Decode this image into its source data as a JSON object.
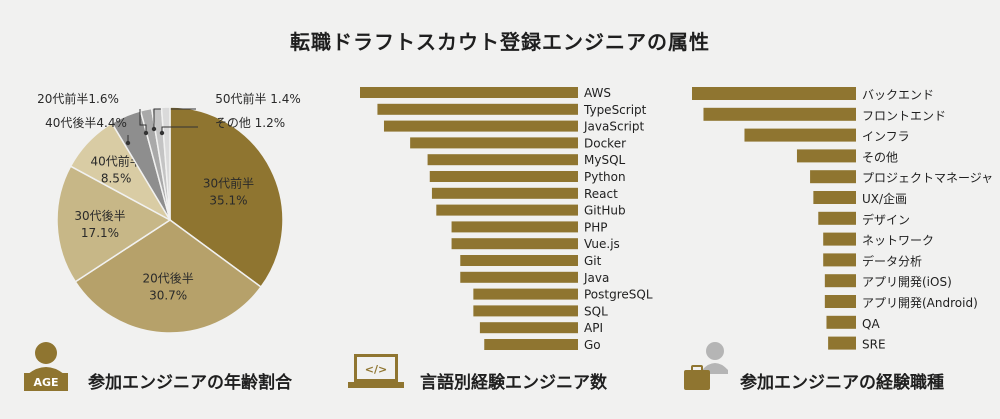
{
  "title": "転職ドラフトスカウト登録エンジニアの属性",
  "colors": {
    "gold": "#8f7530",
    "gold_light": "#b6a16a",
    "sand": "#d3c49a",
    "gray_dark": "#8e8e8e",
    "gray_mid": "#a9a9a9",
    "gray_light": "#c4c4c4",
    "gray_pale": "#dadada",
    "icon": "#8f7530",
    "icon_gray": "#b5b5b5"
  },
  "age_section": {
    "label": "参加エンジニアの年齢割合",
    "icon_text": "AGE"
  },
  "language_section": {
    "label": "言語別経験エンジニア数",
    "icon_text": "</>"
  },
  "job_section": {
    "label": "参加エンジニアの経験職種"
  },
  "chart_data": [
    {
      "type": "pie",
      "title": "参加エンジニアの年齢割合",
      "slices": [
        {
          "label": "30代前半",
          "value": 35.1,
          "value_text": "35.1%",
          "color": "#8f7530"
        },
        {
          "label": "20代後半",
          "value": 30.7,
          "value_text": "30.7%",
          "color": "#b6a16a"
        },
        {
          "label": "30代後半",
          "value": 17.1,
          "value_text": "17.1%",
          "color": "#c7b787"
        },
        {
          "label": "40代前半",
          "value": 8.5,
          "value_text": "8.5%",
          "color": "#d9cca4"
        },
        {
          "label": "40代後半",
          "value": 4.4,
          "value_text": "40代後半4.4%",
          "color": "#8e8e8e"
        },
        {
          "label": "20代前半",
          "value": 1.6,
          "value_text": "20代前半1.6%",
          "color": "#a9a9a9"
        },
        {
          "label": "50代前半",
          "value": 1.4,
          "value_text": "50代前半 1.4%",
          "color": "#c4c4c4"
        },
        {
          "label": "その他",
          "value": 1.2,
          "value_text": "その他 1.2%",
          "color": "#dadada"
        }
      ]
    },
    {
      "type": "bar",
      "orientation": "horizontal",
      "align": "right",
      "title": "言語別経験エンジニア数",
      "categories": [
        "AWS",
        "TypeScript",
        "JavaScript",
        "Docker",
        "MySQL",
        "Python",
        "React",
        "GitHub",
        "PHP",
        "Vue.js",
        "Git",
        "Java",
        "PostgreSQL",
        "SQL",
        "API",
        "Go"
      ],
      "values": [
        100,
        92,
        89,
        77,
        69,
        68,
        67,
        65,
        58,
        58,
        54,
        54,
        48,
        48,
        45,
        43
      ]
    },
    {
      "type": "bar",
      "orientation": "horizontal",
      "align": "right",
      "title": "参加エンジニアの経験職種",
      "categories": [
        "バックエンド",
        "フロントエンド",
        "インフラ",
        "その他",
        "プロジェクトマネージャ",
        "UX/企画",
        "デザイン",
        "ネットワーク",
        "データ分析",
        "アプリ開発(iOS)",
        "アプリ開発(Android)",
        "QA",
        "SRE"
      ],
      "values": [
        100,
        93,
        68,
        36,
        28,
        26,
        23,
        20,
        20,
        19,
        19,
        18,
        17
      ]
    }
  ]
}
